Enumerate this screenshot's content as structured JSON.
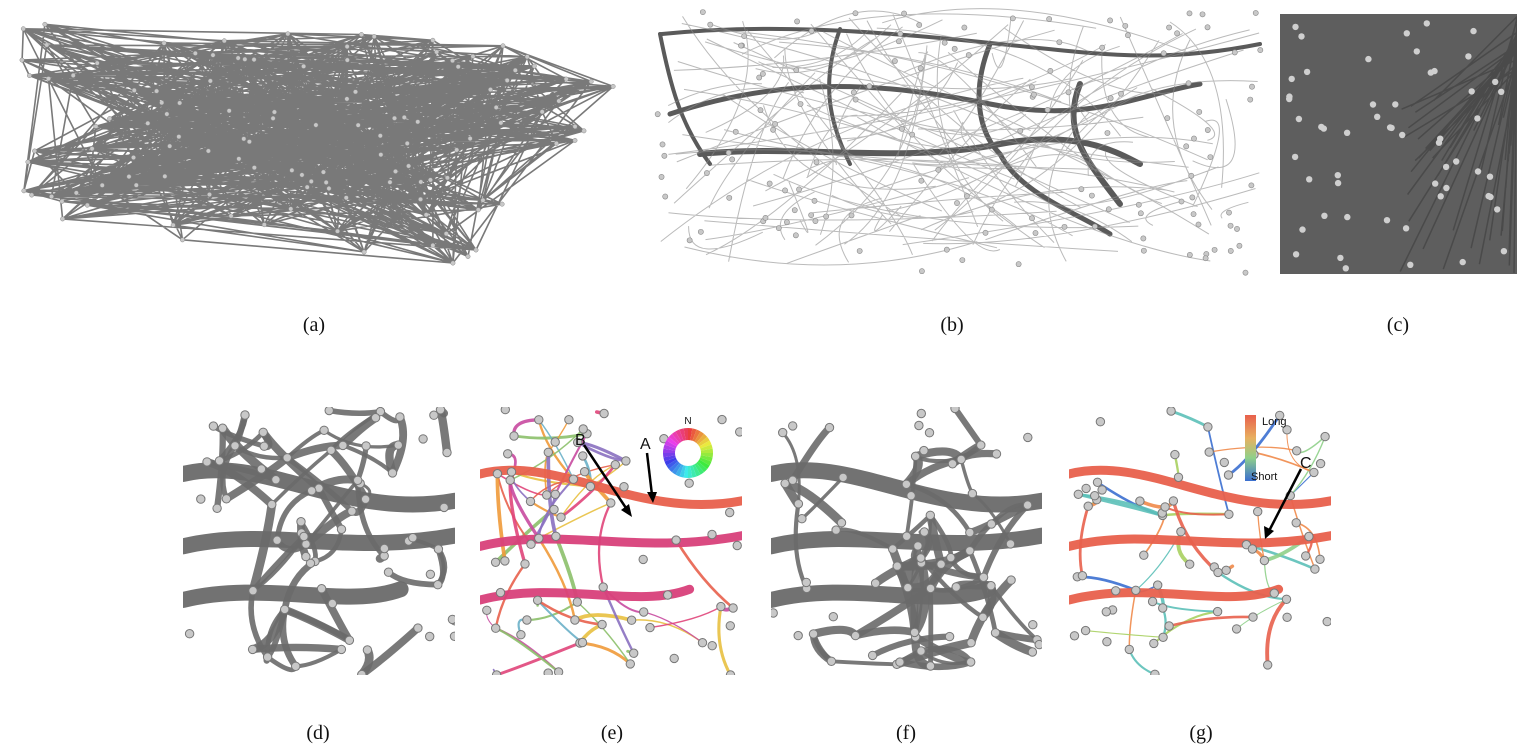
{
  "captions": [
    "(a)",
    "(b)",
    "(c)",
    "(d)",
    "(e)",
    "(f)",
    "(g)"
  ],
  "annotations": {
    "e": {
      "arrow_a": "A",
      "arrow_b": "B",
      "compass_north": "N"
    },
    "g": {
      "legend_long": "Long",
      "legend_short": "Short",
      "arrow_c": "C"
    }
  },
  "colors": {
    "edge_gray": "#666666",
    "node_fill": "#c8c8c8",
    "node_stroke": "#8a8a8a",
    "length_long": "#e8604c",
    "length_short": "#3b6fd0"
  }
}
